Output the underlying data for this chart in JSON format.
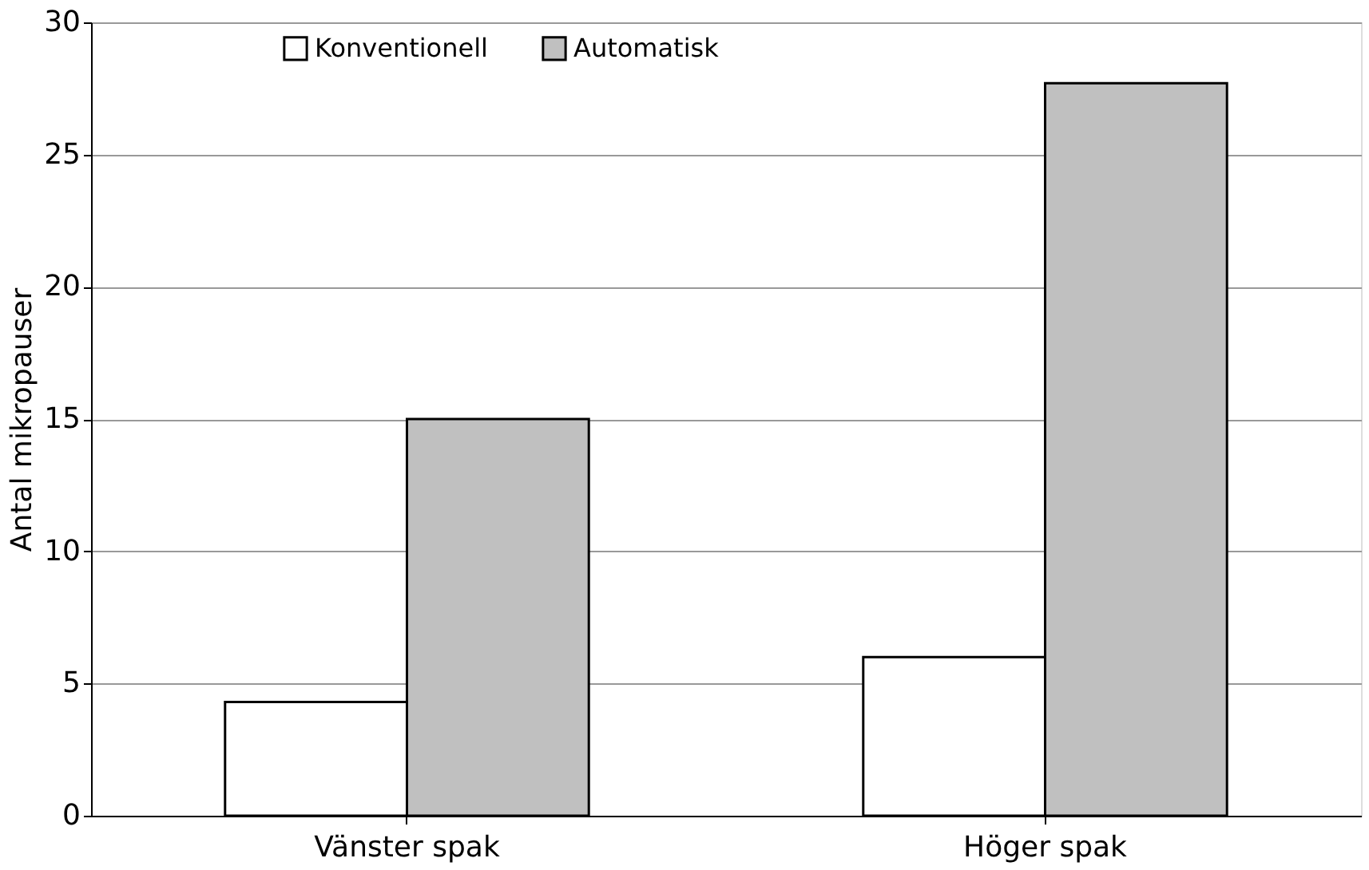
{
  "chart_data": {
    "type": "bar",
    "ylabel": "Antal mikropauser",
    "categories": [
      "Vänster spak",
      "Höger spak"
    ],
    "series": [
      {
        "name": "Konventionell",
        "color": "#ffffff",
        "values": [
          4.3,
          6
        ]
      },
      {
        "name": "Automatisk",
        "color": "#c0c0c0",
        "values": [
          15,
          27.7
        ]
      }
    ],
    "ylim": [
      0,
      30
    ],
    "yticks": [
      0,
      5,
      10,
      15,
      20,
      25,
      30
    ],
    "grid": "y",
    "legend": "top"
  }
}
